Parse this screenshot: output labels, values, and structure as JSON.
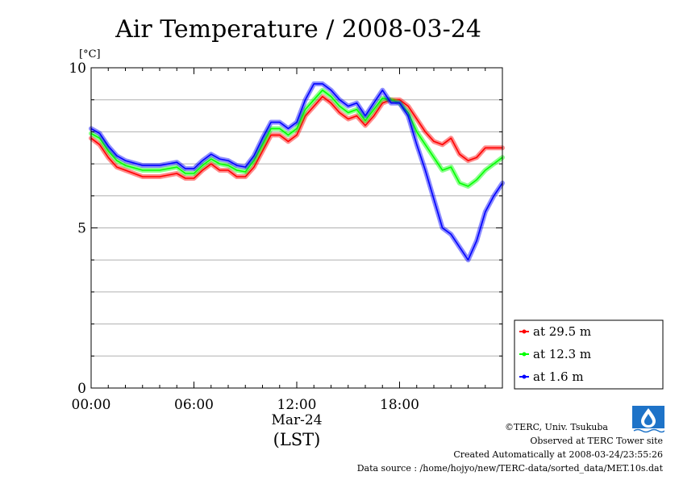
{
  "chart_data": {
    "type": "line",
    "title": "Air Temperature / 2008-03-24",
    "ylabel": "[°C]",
    "xlabel": "(LST)",
    "date_label": "Mar-24",
    "xlim": [
      0,
      24
    ],
    "ylim": [
      0,
      10
    ],
    "x_ticks": [
      "00:00",
      "06:00",
      "12:00",
      "18:00"
    ],
    "x_tick_values": [
      0,
      6,
      12,
      18
    ],
    "y_ticks": [
      "0",
      "5",
      "10"
    ],
    "y_tick_values": [
      0,
      5,
      10
    ],
    "grid": true,
    "legend_position": "lower-right",
    "x_unit": "hour",
    "series": [
      {
        "name": "at 29.5 m",
        "color": "#ff0000",
        "x": [
          0,
          0.5,
          1,
          1.5,
          2,
          3,
          4,
          5,
          5.5,
          6,
          6.5,
          7,
          7.5,
          8,
          8.5,
          9,
          9.5,
          10,
          10.5,
          11,
          11.5,
          12,
          12.5,
          13,
          13.5,
          14,
          14.5,
          15,
          15.5,
          16,
          16.5,
          17,
          17.5,
          18,
          18.5,
          19,
          19.5,
          20,
          20.5,
          21,
          21.5,
          22,
          22.5,
          23,
          23.5,
          24
        ],
        "values": [
          7.8,
          7.6,
          7.2,
          6.9,
          6.8,
          6.6,
          6.6,
          6.7,
          6.55,
          6.55,
          6.8,
          7.0,
          6.8,
          6.8,
          6.6,
          6.6,
          6.9,
          7.4,
          7.9,
          7.9,
          7.7,
          7.9,
          8.5,
          8.8,
          9.1,
          8.9,
          8.6,
          8.4,
          8.5,
          8.2,
          8.5,
          8.9,
          9.0,
          9.0,
          8.8,
          8.4,
          8.0,
          7.7,
          7.6,
          7.8,
          7.3,
          7.1,
          7.2,
          7.5,
          7.5,
          7.5
        ]
      },
      {
        "name": "at 12.3 m",
        "color": "#00ff00",
        "x": [
          0,
          0.5,
          1,
          1.5,
          2,
          3,
          4,
          5,
          5.5,
          6,
          6.5,
          7,
          7.5,
          8,
          8.5,
          9,
          9.5,
          10,
          10.5,
          11,
          11.5,
          12,
          12.5,
          13,
          13.5,
          14,
          14.5,
          15,
          15.5,
          16,
          16.5,
          17,
          17.5,
          18,
          18.5,
          19,
          19.5,
          20,
          20.5,
          21,
          21.5,
          22,
          22.5,
          23,
          23.5,
          24
        ],
        "values": [
          7.95,
          7.8,
          7.4,
          7.1,
          6.95,
          6.8,
          6.8,
          6.9,
          6.7,
          6.7,
          6.95,
          7.15,
          7.0,
          6.95,
          6.8,
          6.75,
          7.1,
          7.6,
          8.1,
          8.1,
          7.9,
          8.1,
          8.7,
          9.0,
          9.3,
          9.1,
          8.8,
          8.6,
          8.7,
          8.35,
          8.7,
          9.05,
          9.0,
          8.9,
          8.6,
          8.0,
          7.6,
          7.2,
          6.8,
          6.9,
          6.4,
          6.3,
          6.5,
          6.8,
          7.0,
          7.2
        ]
      },
      {
        "name": "at 1.6 m",
        "color": "#0000ff",
        "x": [
          0,
          0.5,
          1,
          1.5,
          2,
          3,
          4,
          5,
          5.5,
          6,
          6.5,
          7,
          7.5,
          8,
          8.5,
          9,
          9.5,
          10,
          10.5,
          11,
          11.5,
          12,
          12.5,
          13,
          13.5,
          14,
          14.5,
          15,
          15.5,
          16,
          16.5,
          17,
          17.5,
          18,
          18.5,
          19,
          19.5,
          20,
          20.5,
          21,
          21.5,
          22,
          22.5,
          23,
          23.5,
          24
        ],
        "values": [
          8.1,
          7.95,
          7.55,
          7.25,
          7.1,
          6.95,
          6.95,
          7.05,
          6.85,
          6.85,
          7.1,
          7.3,
          7.15,
          7.1,
          6.95,
          6.9,
          7.25,
          7.8,
          8.3,
          8.3,
          8.1,
          8.3,
          9.0,
          9.5,
          9.5,
          9.3,
          9.0,
          8.8,
          8.9,
          8.5,
          8.9,
          9.3,
          8.9,
          8.9,
          8.5,
          7.6,
          6.8,
          5.9,
          5.0,
          4.8,
          4.4,
          4.0,
          4.6,
          5.5,
          6.0,
          6.4
        ]
      }
    ]
  },
  "credits": {
    "copyright": "©TERC, Univ. Tsukuba",
    "observed": "Observed at TERC Tower site",
    "created": "Created Automatically at 2008-03-24/23:55:26",
    "source": "Data source : /home/hojyo/new/TERC-data/sorted_data/MET.10s.dat"
  },
  "logo": {
    "icon": "terc-logo-icon",
    "color": "#1e73c8"
  }
}
